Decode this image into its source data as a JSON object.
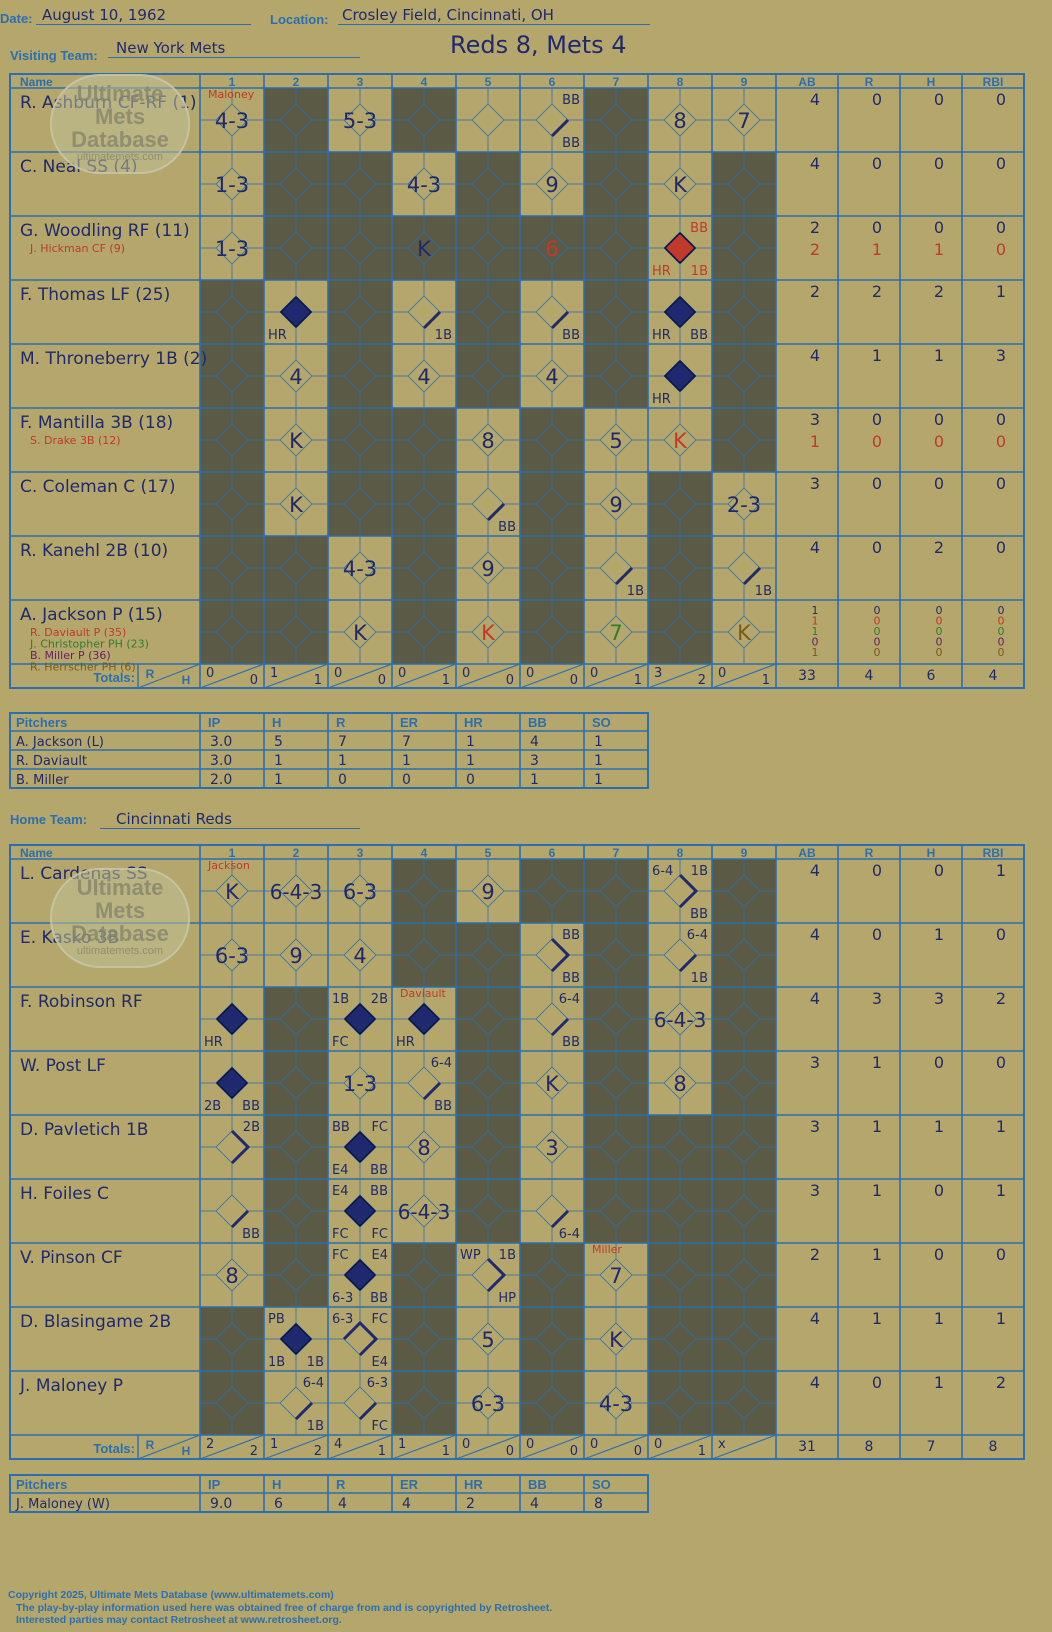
{
  "header": {
    "date_label": "Date:",
    "date": "August 10, 1962",
    "location_label": "Location:",
    "location": "Crosley Field, Cincinnati, OH",
    "score_line": "Reds 8, Mets 4"
  },
  "visitor": {
    "team_label": "Visiting Team:",
    "team": "New York Mets",
    "col_name": "Name",
    "innings": [
      "1",
      "2",
      "3",
      "4",
      "5",
      "6",
      "7",
      "8",
      "9"
    ],
    "stat_headers": [
      "AB",
      "R",
      "H",
      "RBI"
    ],
    "shaded": [
      [
        0,
        1,
        0,
        1,
        0,
        0,
        1,
        0,
        0
      ],
      [
        0,
        1,
        1,
        0,
        1,
        0,
        1,
        0,
        1
      ],
      [
        0,
        1,
        1,
        1,
        1,
        1,
        1,
        0,
        1
      ],
      [
        1,
        0,
        1,
        0,
        1,
        0,
        1,
        0,
        1
      ],
      [
        1,
        0,
        1,
        0,
        1,
        0,
        1,
        0,
        1
      ],
      [
        1,
        0,
        1,
        1,
        0,
        1,
        0,
        0,
        1
      ],
      [
        1,
        0,
        1,
        1,
        0,
        1,
        0,
        1,
        0
      ],
      [
        1,
        1,
        0,
        1,
        0,
        1,
        0,
        1,
        0
      ],
      [
        1,
        1,
        0,
        1,
        0,
        1,
        0,
        1,
        0
      ]
    ],
    "players": [
      {
        "name": "R. Ashburn CF-RF (1)",
        "subs": [],
        "stats": [
          [
            "4",
            "0",
            "0",
            "0"
          ]
        ]
      },
      {
        "name": "C. Neal SS (4)",
        "subs": [],
        "stats": [
          [
            "4",
            "0",
            "0",
            "0"
          ]
        ]
      },
      {
        "name": "G. Woodling RF (11)",
        "subs": [
          {
            "name": "J. Hickman CF (9)",
            "color": "#c0392b"
          }
        ],
        "stats": [
          [
            "2",
            "0",
            "0",
            "0"
          ],
          [
            "2",
            "1",
            "1",
            "0"
          ]
        ]
      },
      {
        "name": "F. Thomas LF (25)",
        "subs": [],
        "stats": [
          [
            "2",
            "2",
            "2",
            "1"
          ]
        ]
      },
      {
        "name": "M. Throneberry 1B (2)",
        "subs": [],
        "stats": [
          [
            "4",
            "1",
            "1",
            "3"
          ]
        ]
      },
      {
        "name": "F. Mantilla 3B (18)",
        "subs": [
          {
            "name": "S. Drake 3B (12)",
            "color": "#c0392b"
          }
        ],
        "stats": [
          [
            "3",
            "0",
            "0",
            "0"
          ],
          [
            "1",
            "0",
            "0",
            "0"
          ]
        ]
      },
      {
        "name": "C. Coleman C (17)",
        "subs": [],
        "stats": [
          [
            "3",
            "0",
            "0",
            "0"
          ]
        ]
      },
      {
        "name": "R. Kanehl 2B (10)",
        "subs": [],
        "stats": [
          [
            "4",
            "0",
            "2",
            "0"
          ]
        ]
      },
      {
        "name": "A. Jackson P (15)",
        "subs": [
          {
            "name": "R. Daviault P (35)",
            "color": "#c0392b"
          },
          {
            "name": "J. Christopher PH (23)",
            "color": "#2e7d32"
          },
          {
            "name": "B. Miller P (36)",
            "color": "#6a1b6a"
          },
          {
            "name": "R. Herrscher PH (6)",
            "color": "#7a5a1a"
          }
        ],
        "stats": [
          [
            "1",
            "0",
            "0",
            "0"
          ],
          [
            "1",
            "0",
            "0",
            "0"
          ],
          [
            "1",
            "0",
            "0",
            "0"
          ],
          [
            "0",
            "0",
            "0",
            "0"
          ],
          [
            "1",
            "0",
            "0",
            "0"
          ]
        ]
      }
    ],
    "marks": [
      [
        0,
        0,
        "t",
        "4-3"
      ],
      [
        0,
        0,
        "r",
        "Maloney"
      ],
      [
        0,
        2,
        "t",
        "5-3"
      ],
      [
        0,
        5,
        "p1",
        ""
      ],
      [
        0,
        5,
        "tr",
        "BB"
      ],
      [
        0,
        5,
        "br",
        "BB"
      ],
      [
        0,
        7,
        "t",
        "8"
      ],
      [
        0,
        8,
        "t",
        "7"
      ],
      [
        1,
        0,
        "t",
        "1-3"
      ],
      [
        1,
        3,
        "t",
        "4-3"
      ],
      [
        1,
        5,
        "t",
        "9"
      ],
      [
        1,
        7,
        "t",
        "K"
      ],
      [
        2,
        0,
        "t",
        "1-3"
      ],
      [
        2,
        3,
        "t",
        "K"
      ],
      [
        2,
        5,
        "tR",
        "6"
      ],
      [
        2,
        7,
        "rr",
        ""
      ],
      [
        2,
        7,
        "trR",
        "BB"
      ],
      [
        2,
        7,
        "blR",
        "HR"
      ],
      [
        2,
        7,
        "brR",
        "1B"
      ],
      [
        3,
        1,
        "run",
        ""
      ],
      [
        3,
        1,
        "bl",
        "HR"
      ],
      [
        3,
        3,
        "p1",
        ""
      ],
      [
        3,
        3,
        "br",
        "1B"
      ],
      [
        3,
        5,
        "p1",
        ""
      ],
      [
        3,
        5,
        "br",
        "BB"
      ],
      [
        3,
        7,
        "run",
        ""
      ],
      [
        3,
        7,
        "bl",
        "HR"
      ],
      [
        3,
        7,
        "br",
        "BB"
      ],
      [
        4,
        1,
        "t",
        "4"
      ],
      [
        4,
        3,
        "t",
        "4"
      ],
      [
        4,
        5,
        "t",
        "4"
      ],
      [
        4,
        7,
        "run",
        ""
      ],
      [
        4,
        7,
        "bl",
        "HR"
      ],
      [
        5,
        1,
        "t",
        "K"
      ],
      [
        5,
        4,
        "t",
        "8"
      ],
      [
        5,
        6,
        "t",
        "5"
      ],
      [
        5,
        7,
        "tR",
        "K"
      ],
      [
        6,
        1,
        "t",
        "K"
      ],
      [
        6,
        4,
        "p1",
        ""
      ],
      [
        6,
        4,
        "br",
        "BB"
      ],
      [
        6,
        6,
        "t",
        "9"
      ],
      [
        6,
        8,
        "t",
        "2-3"
      ],
      [
        7,
        2,
        "t",
        "4-3"
      ],
      [
        7,
        4,
        "t",
        "9"
      ],
      [
        7,
        6,
        "p1",
        ""
      ],
      [
        7,
        6,
        "br",
        "1B"
      ],
      [
        7,
        8,
        "p1",
        ""
      ],
      [
        7,
        8,
        "br",
        "1B"
      ],
      [
        8,
        2,
        "t",
        "K"
      ],
      [
        8,
        4,
        "tR",
        "K"
      ],
      [
        8,
        6,
        "tG",
        "7"
      ],
      [
        8,
        8,
        "tB",
        "K"
      ]
    ],
    "totals_label": "Totals:",
    "totals_rh": [
      "R",
      "H"
    ],
    "totals": [
      [
        "0",
        "0"
      ],
      [
        "1",
        "1"
      ],
      [
        "0",
        "0"
      ],
      [
        "0",
        "1"
      ],
      [
        "0",
        "0"
      ],
      [
        "0",
        "0"
      ],
      [
        "0",
        "1"
      ],
      [
        "3",
        "2"
      ],
      [
        "0",
        "1"
      ]
    ],
    "totals_stats": [
      "33",
      "4",
      "6",
      "4"
    ],
    "pitchers_headers": [
      "Pitchers",
      "IP",
      "H",
      "R",
      "ER",
      "HR",
      "BB",
      "SO"
    ],
    "pitchers": [
      [
        "A. Jackson (L)",
        "3.0",
        "5",
        "7",
        "7",
        "1",
        "4",
        "1"
      ],
      [
        "R. Daviault",
        "3.0",
        "1",
        "1",
        "1",
        "1",
        "3",
        "1"
      ],
      [
        "B. Miller",
        "2.0",
        "1",
        "0",
        "0",
        "0",
        "1",
        "1"
      ]
    ]
  },
  "home": {
    "team_label": "Home Team:",
    "team": "Cincinnati Reds",
    "col_name": "Name",
    "innings": [
      "1",
      "2",
      "3",
      "4",
      "5",
      "6",
      "7",
      "8",
      "9"
    ],
    "stat_headers": [
      "AB",
      "R",
      "H",
      "RBI"
    ],
    "shaded": [
      [
        0,
        0,
        0,
        1,
        0,
        1,
        1,
        0,
        1
      ],
      [
        0,
        0,
        0,
        1,
        1,
        0,
        1,
        0,
        1
      ],
      [
        0,
        1,
        0,
        0,
        1,
        0,
        1,
        0,
        1
      ],
      [
        0,
        1,
        0,
        0,
        1,
        0,
        1,
        0,
        1
      ],
      [
        0,
        1,
        0,
        0,
        1,
        0,
        1,
        1,
        1
      ],
      [
        0,
        1,
        0,
        0,
        1,
        0,
        1,
        1,
        1
      ],
      [
        0,
        1,
        0,
        1,
        0,
        1,
        0,
        1,
        1
      ],
      [
        1,
        0,
        0,
        1,
        0,
        1,
        0,
        1,
        1
      ],
      [
        1,
        0,
        0,
        1,
        0,
        1,
        0,
        1,
        1
      ]
    ],
    "players": [
      {
        "name": "L. Cardenas SS",
        "subs": [],
        "stats": [
          [
            "4",
            "0",
            "0",
            "1"
          ]
        ]
      },
      {
        "name": "E. Kasko 3B",
        "subs": [],
        "stats": [
          [
            "4",
            "0",
            "1",
            "0"
          ]
        ]
      },
      {
        "name": "F. Robinson RF",
        "subs": [],
        "stats": [
          [
            "4",
            "3",
            "3",
            "2"
          ]
        ]
      },
      {
        "name": "W. Post LF",
        "subs": [],
        "stats": [
          [
            "3",
            "1",
            "0",
            "0"
          ]
        ]
      },
      {
        "name": "D. Pavletich 1B",
        "subs": [],
        "stats": [
          [
            "3",
            "1",
            "1",
            "1"
          ]
        ]
      },
      {
        "name": "H. Foiles C",
        "subs": [],
        "stats": [
          [
            "3",
            "1",
            "0",
            "1"
          ]
        ]
      },
      {
        "name": "V. Pinson CF",
        "subs": [],
        "stats": [
          [
            "2",
            "1",
            "0",
            "0"
          ]
        ]
      },
      {
        "name": "D. Blasingame 2B",
        "subs": [],
        "stats": [
          [
            "4",
            "1",
            "1",
            "1"
          ]
        ]
      },
      {
        "name": "J. Maloney P",
        "subs": [],
        "stats": [
          [
            "4",
            "0",
            "1",
            "2"
          ]
        ]
      }
    ],
    "marks": [
      [
        0,
        0,
        "t",
        "K"
      ],
      [
        0,
        0,
        "r",
        "Jackson"
      ],
      [
        0,
        1,
        "t",
        "6-4-3"
      ],
      [
        0,
        2,
        "t",
        "6-3"
      ],
      [
        0,
        4,
        "t",
        "9"
      ],
      [
        0,
        7,
        "p2",
        ""
      ],
      [
        0,
        7,
        "tl",
        "6-4"
      ],
      [
        0,
        7,
        "tr",
        "1B"
      ],
      [
        0,
        7,
        "br",
        "BB"
      ],
      [
        1,
        0,
        "t",
        "6-3"
      ],
      [
        1,
        1,
        "t",
        "9"
      ],
      [
        1,
        2,
        "t",
        "4"
      ],
      [
        1,
        5,
        "p2",
        ""
      ],
      [
        1,
        5,
        "tr",
        "BB"
      ],
      [
        1,
        5,
        "br",
        "BB"
      ],
      [
        1,
        7,
        "p1",
        ""
      ],
      [
        1,
        7,
        "tr",
        "6-4"
      ],
      [
        1,
        7,
        "br",
        "1B"
      ],
      [
        2,
        0,
        "run",
        ""
      ],
      [
        2,
        0,
        "bl",
        "HR"
      ],
      [
        2,
        2,
        "run",
        ""
      ],
      [
        2,
        2,
        "tl",
        "1B"
      ],
      [
        2,
        2,
        "tr",
        "2B"
      ],
      [
        2,
        2,
        "bl",
        "FC"
      ],
      [
        2,
        3,
        "run",
        ""
      ],
      [
        2,
        3,
        "bl",
        "HR"
      ],
      [
        2,
        3,
        "r",
        "Daviault"
      ],
      [
        2,
        5,
        "p1",
        ""
      ],
      [
        2,
        5,
        "tr",
        "6-4"
      ],
      [
        2,
        5,
        "br",
        "BB"
      ],
      [
        2,
        7,
        "t",
        "6-4-3"
      ],
      [
        3,
        0,
        "run",
        ""
      ],
      [
        3,
        0,
        "bl",
        "2B"
      ],
      [
        3,
        0,
        "br",
        "BB"
      ],
      [
        3,
        2,
        "t",
        "1-3"
      ],
      [
        3,
        3,
        "p1",
        ""
      ],
      [
        3,
        3,
        "tr",
        "6-4"
      ],
      [
        3,
        3,
        "br",
        "BB"
      ],
      [
        3,
        5,
        "t",
        "K"
      ],
      [
        3,
        7,
        "t",
        "8"
      ],
      [
        4,
        0,
        "p2",
        ""
      ],
      [
        4,
        0,
        "tr",
        "2B"
      ],
      [
        4,
        2,
        "run",
        ""
      ],
      [
        4,
        2,
        "tl",
        "BB"
      ],
      [
        4,
        2,
        "tr",
        "FC"
      ],
      [
        4,
        2,
        "bl",
        "E4"
      ],
      [
        4,
        2,
        "br",
        "BB"
      ],
      [
        4,
        3,
        "t",
        "8"
      ],
      [
        4,
        5,
        "t",
        "3"
      ],
      [
        5,
        0,
        "p1",
        ""
      ],
      [
        5,
        0,
        "br",
        "BB"
      ],
      [
        5,
        2,
        "run",
        ""
      ],
      [
        5,
        2,
        "tl",
        "E4"
      ],
      [
        5,
        2,
        "tr",
        "BB"
      ],
      [
        5,
        2,
        "bl",
        "FC"
      ],
      [
        5,
        2,
        "br",
        "FC"
      ],
      [
        5,
        3,
        "t",
        "6-4-3"
      ],
      [
        5,
        5,
        "p1",
        ""
      ],
      [
        5,
        5,
        "br",
        "6-4"
      ],
      [
        6,
        0,
        "t",
        "8"
      ],
      [
        6,
        2,
        "run",
        ""
      ],
      [
        6,
        2,
        "tl",
        "FC"
      ],
      [
        6,
        2,
        "tr",
        "E4"
      ],
      [
        6,
        2,
        "bl",
        "6-3"
      ],
      [
        6,
        2,
        "br",
        "BB"
      ],
      [
        6,
        4,
        "p2",
        ""
      ],
      [
        6,
        4,
        "tl",
        "WP"
      ],
      [
        6,
        4,
        "tr",
        "1B"
      ],
      [
        6,
        4,
        "br",
        "HP"
      ],
      [
        6,
        6,
        "t",
        "7"
      ],
      [
        6,
        6,
        "r",
        "Miller"
      ],
      [
        7,
        1,
        "run",
        ""
      ],
      [
        7,
        1,
        "tl",
        "PB"
      ],
      [
        7,
        1,
        "bl",
        "1B"
      ],
      [
        7,
        1,
        "br",
        "1B"
      ],
      [
        7,
        2,
        "p3",
        ""
      ],
      [
        7,
        2,
        "tl",
        "6-3"
      ],
      [
        7,
        2,
        "tr",
        "FC"
      ],
      [
        7,
        2,
        "br",
        "E4"
      ],
      [
        7,
        4,
        "t",
        "5"
      ],
      [
        7,
        6,
        "t",
        "K"
      ],
      [
        8,
        1,
        "p1",
        ""
      ],
      [
        8,
        1,
        "tr",
        "6-4"
      ],
      [
        8,
        1,
        "br",
        "1B"
      ],
      [
        8,
        2,
        "p1",
        ""
      ],
      [
        8,
        2,
        "tr",
        "6-3"
      ],
      [
        8,
        2,
        "br",
        "FC"
      ],
      [
        8,
        4,
        "t",
        "6-3"
      ],
      [
        8,
        6,
        "t",
        "4-3"
      ]
    ],
    "totals_label": "Totals:",
    "totals_rh": [
      "R",
      "H"
    ],
    "totals": [
      [
        "2",
        "2"
      ],
      [
        "1",
        "2"
      ],
      [
        "4",
        "1"
      ],
      [
        "1",
        "1"
      ],
      [
        "0",
        "0"
      ],
      [
        "0",
        "0"
      ],
      [
        "0",
        "0"
      ],
      [
        "0",
        "1"
      ],
      [
        "x",
        ""
      ]
    ],
    "totals_stats": [
      "31",
      "8",
      "7",
      "8"
    ],
    "pitchers_headers": [
      "Pitchers",
      "IP",
      "H",
      "R",
      "ER",
      "HR",
      "BB",
      "SO"
    ],
    "pitchers": [
      [
        "J. Maloney (W)",
        "9.0",
        "6",
        "4",
        "4",
        "2",
        "4",
        "8"
      ]
    ]
  },
  "watermark": {
    "line1": "Ultimate",
    "line2": "Mets",
    "line3": "Database",
    "url": "ultimatemets.com"
  },
  "footer": {
    "line1": "Copyright 2025, Ultimate Mets Database (www.ultimatemets.com)",
    "line2": "The play-by-play information used here was obtained free of charge from and is copyrighted by Retrosheet.",
    "line3": "Interested parties may contact Retrosheet at www.retrosheet.org."
  },
  "colors": {
    "background": "#b5a76b",
    "grid": "#2b6fb0",
    "shaded": "#5b5b45",
    "ink": "#1f2a6e",
    "run": "#1f2a6e",
    "red": "#c0392b",
    "green": "#2e7d32",
    "brown": "#7a5a1a"
  }
}
